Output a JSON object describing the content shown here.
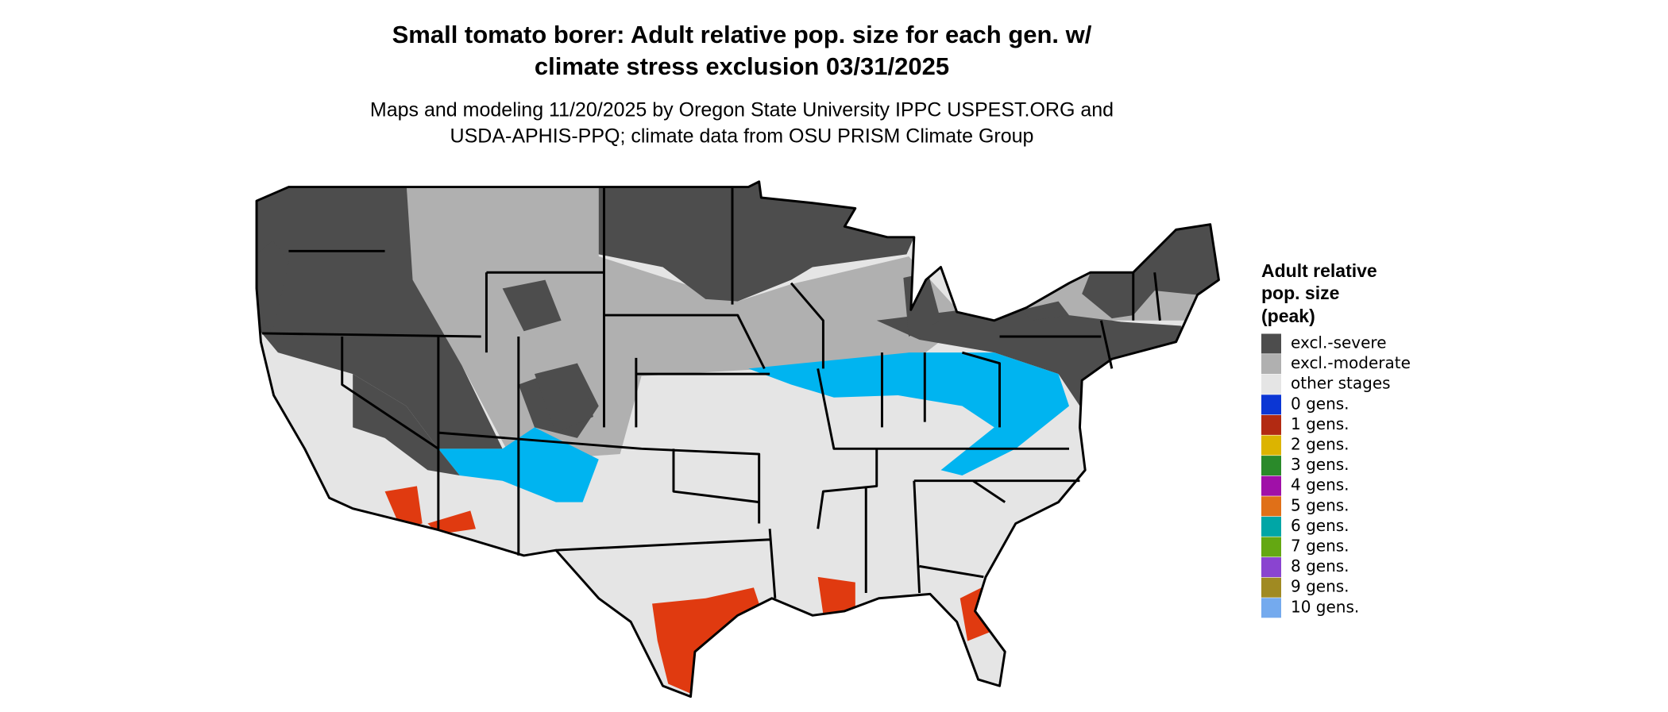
{
  "title": [
    "Small tomato borer: Adult relative pop. size for each gen. w/",
    "climate stress exclusion 03/31/2025"
  ],
  "subtitle": [
    "Maps and modeling 11/20/2025 by Oregon State University IPPC USPEST.ORG and",
    "USDA-APHIS-PPQ; climate data from OSU PRISM Climate Group"
  ],
  "legend": {
    "title": [
      "Adult relative",
      "pop. size",
      "(peak)"
    ],
    "items": [
      {
        "label": "excl.-severe",
        "color": "#4d4d4d"
      },
      {
        "label": "excl.-moderate",
        "color": "#b0b0b0"
      },
      {
        "label": "other stages",
        "color": "#e5e5e5"
      },
      {
        "label": "0 gens.",
        "color": "#0b36d4"
      },
      {
        "label": "1 gens.",
        "color": "#b22a12"
      },
      {
        "label": "2 gens.",
        "color": "#dcb400"
      },
      {
        "label": "3 gens.",
        "color": "#2a8a2a"
      },
      {
        "label": "4 gens.",
        "color": "#a010a8"
      },
      {
        "label": "5 gens.",
        "color": "#e07018"
      },
      {
        "label": "6 gens.",
        "color": "#00a6a6"
      },
      {
        "label": "7 gens.",
        "color": "#64a812"
      },
      {
        "label": "8 gens.",
        "color": "#8a44d0"
      },
      {
        "label": "9 gens.",
        "color": "#a08a22"
      },
      {
        "label": "10 gens.",
        "color": "#74aaee"
      }
    ]
  }
}
